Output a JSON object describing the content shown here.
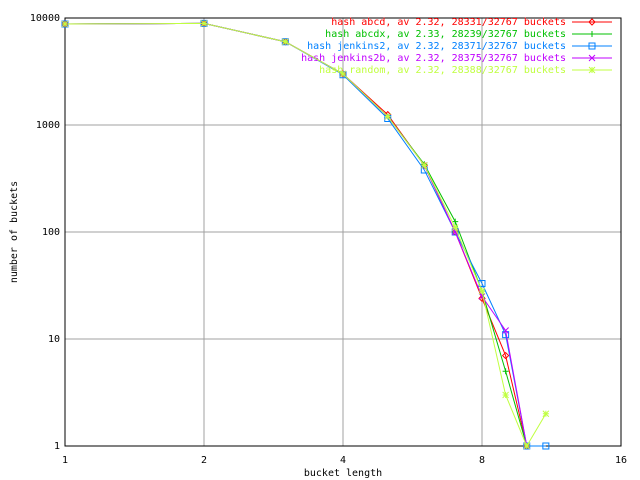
{
  "chart_data": {
    "type": "line",
    "x_label": "bucket length",
    "y_label": "number of buckets",
    "xlim": [
      1,
      16
    ],
    "ylim": [
      1,
      10000
    ],
    "xticks": [
      1,
      2,
      4,
      8,
      16
    ],
    "yticks": [
      1,
      10,
      100,
      1000,
      10000
    ],
    "log_x": true,
    "log_y": true,
    "grid": true,
    "legend": "top-right",
    "series": [
      {
        "name": "hash abcd, av 2.32, 28331/32767 buckets",
        "color": "#ff0000",
        "marker": "diamond",
        "x": [
          1,
          2,
          3,
          4,
          5,
          6,
          7,
          8,
          9,
          10
        ],
        "values": [
          8800,
          8900,
          6000,
          3000,
          1250,
          420,
          100,
          24,
          7,
          1
        ]
      },
      {
        "name": "hash abcdx, av 2.33, 28239/32767 buckets",
        "color": "#00c000",
        "marker": "plus",
        "x": [
          1,
          2,
          3,
          4,
          5,
          6,
          7,
          8,
          9,
          10
        ],
        "values": [
          8800,
          8900,
          6000,
          3000,
          1200,
          430,
          125,
          28,
          5,
          1
        ]
      },
      {
        "name": "hash jenkins2, av 2.32, 28371/32767 buckets",
        "color": "#0080ff",
        "marker": "square",
        "x": [
          1,
          2,
          3,
          4,
          5,
          6,
          7,
          8,
          9,
          10,
          11
        ],
        "values": [
          8800,
          8900,
          6000,
          2950,
          1150,
          380,
          100,
          33,
          11,
          1,
          1
        ]
      },
      {
        "name": "hash jenkins2b, av 2.32, 28375/32767 buckets",
        "color": "#c000ff",
        "marker": "cross",
        "x": [
          1,
          2,
          3,
          4,
          5,
          6,
          7,
          8,
          9,
          10
        ],
        "values": [
          8800,
          8900,
          6000,
          3000,
          1200,
          420,
          100,
          25,
          12,
          1
        ]
      },
      {
        "name": "hash random, av 2.32, 28388/32767 buckets",
        "color": "#c0ff40",
        "marker": "star",
        "x": [
          1,
          2,
          3,
          4,
          5,
          6,
          7,
          8,
          9,
          10,
          11
        ],
        "values": [
          8800,
          8900,
          6000,
          3000,
          1200,
          420,
          110,
          28,
          3,
          1,
          2
        ]
      }
    ]
  }
}
